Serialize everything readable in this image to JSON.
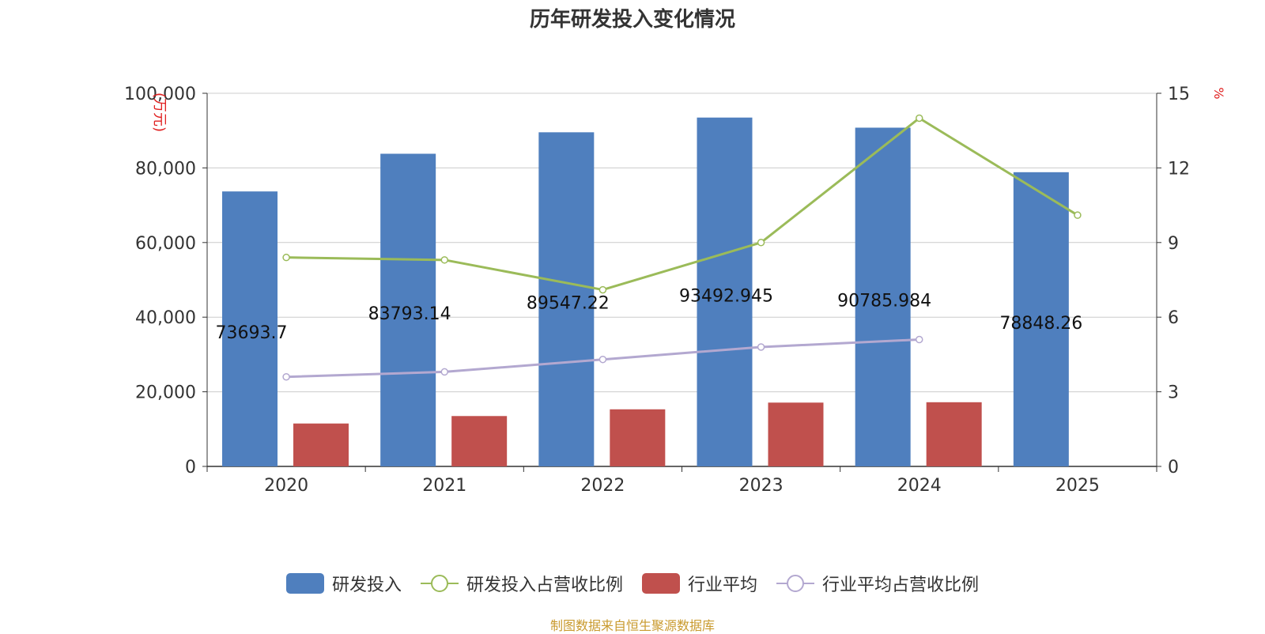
{
  "chart_data": {
    "type": "bar",
    "title": "历年研发投入变化情况",
    "categories": [
      "2020",
      "2021",
      "2022",
      "2023",
      "2024",
      "2025"
    ],
    "y_left": {
      "label": "万元",
      "lim": [
        0,
        100000
      ],
      "ticks": [
        0,
        20000,
        40000,
        60000,
        80000,
        100000
      ],
      "tick_labels": [
        "0",
        "20,000",
        "40,000",
        "60,000",
        "80,000",
        "100,000"
      ]
    },
    "y_right": {
      "label": "%",
      "lim": [
        0,
        15
      ],
      "ticks": [
        0,
        3,
        6,
        9,
        12,
        15
      ],
      "tick_labels": [
        "0",
        "3",
        "6",
        "9",
        "12",
        "15"
      ]
    },
    "grid": true,
    "legend_position": "bottom",
    "series": [
      {
        "name": "研发投入",
        "kind": "bar",
        "axis": "left",
        "color": "#4f7fbe",
        "values": [
          73693.7,
          83793.14,
          89547.22,
          93492.945,
          90785.984,
          78848.26
        ],
        "labels": [
          "73693.7",
          "83793.14",
          "89547.22",
          "93492.945",
          "90785.984",
          "78848.26"
        ]
      },
      {
        "name": "研发投入占营收比例",
        "kind": "line",
        "axis": "right",
        "color": "#9bbb59",
        "values": [
          8.4,
          8.3,
          7.1,
          9.0,
          14.0,
          10.1
        ]
      },
      {
        "name": "行业平均",
        "kind": "bar",
        "axis": "left",
        "color": "#c0504d",
        "values": [
          11500,
          13500,
          15300,
          17100,
          17200,
          null
        ]
      },
      {
        "name": "行业平均占营收比例",
        "kind": "line",
        "axis": "right",
        "color": "#b3a8d0",
        "values": [
          3.6,
          3.8,
          4.3,
          4.8,
          5.1,
          null
        ]
      }
    ]
  },
  "footer": "制图数据来自恒生聚源数据库"
}
